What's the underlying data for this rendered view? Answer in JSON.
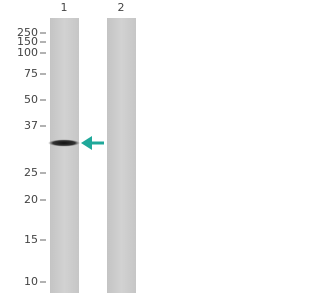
{
  "lanes": [
    "1",
    "2"
  ],
  "markers": [
    "250",
    "150",
    "100",
    "75",
    "50",
    "37",
    "25",
    "20",
    "15",
    "10"
  ]
}
